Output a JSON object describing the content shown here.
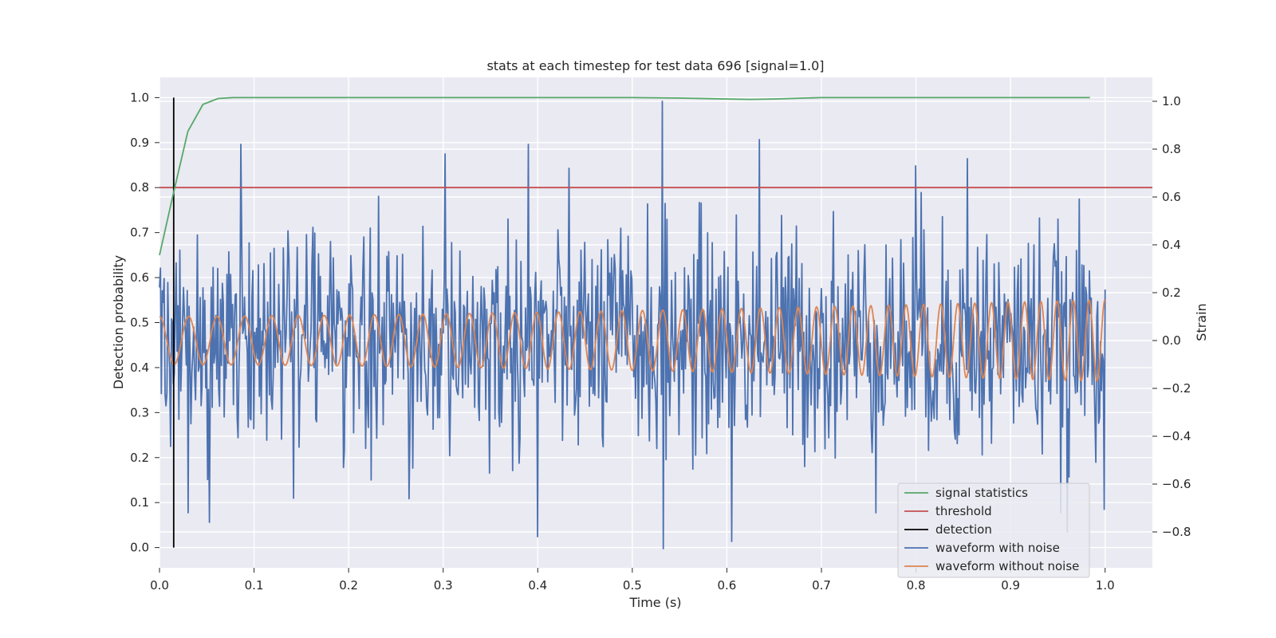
{
  "chart_data": {
    "type": "line",
    "title": "stats at each timestep for test data 696 [signal=1.0]",
    "xlabel": "Time (s)",
    "ylabel_left": "Detection probability",
    "ylabel_right": "Strain",
    "xlim": [
      0.0,
      1.05
    ],
    "ylim_left": [
      -0.045,
      1.045
    ],
    "ylim_right": [
      -0.95,
      1.1
    ],
    "x_ticks": [
      0.0,
      0.1,
      0.2,
      0.3,
      0.4,
      0.5,
      0.6,
      0.7,
      0.8,
      0.9,
      1.0
    ],
    "x_tick_labels": [
      "0.0",
      "0.1",
      "0.2",
      "0.3",
      "0.4",
      "0.5",
      "0.6",
      "0.7",
      "0.8",
      "0.9",
      "1.0"
    ],
    "y_left_ticks": [
      0.0,
      0.1,
      0.2,
      0.3,
      0.4,
      0.5,
      0.6,
      0.7,
      0.8,
      0.9,
      1.0
    ],
    "y_left_tick_labels": [
      "0.0",
      "0.1",
      "0.2",
      "0.3",
      "0.4",
      "0.5",
      "0.6",
      "0.7",
      "0.8",
      "0.9",
      "1.0"
    ],
    "y_right_ticks": [
      -0.8,
      -0.6,
      -0.4,
      -0.2,
      0.0,
      0.2,
      0.4,
      0.6,
      0.8,
      1.0
    ],
    "y_right_tick_labels": [
      "−0.8",
      "−0.6",
      "−0.4",
      "−0.2",
      "0.0",
      "0.2",
      "0.4",
      "0.6",
      "0.8",
      "1.0"
    ],
    "grid": true,
    "legend_position": "lower-right",
    "series": [
      {
        "name": "signal statistics",
        "axis": "left",
        "color": "#55a868",
        "x": [
          0.0,
          0.015,
          0.03,
          0.046,
          0.062,
          0.078,
          0.1,
          0.2,
          0.3,
          0.4,
          0.5,
          0.55,
          0.6,
          0.625,
          0.65,
          0.7,
          0.8,
          0.9,
          0.984
        ],
        "y": [
          0.65,
          0.79,
          0.925,
          0.985,
          0.998,
          1.0,
          1.0,
          1.0,
          1.0,
          1.0,
          1.0,
          0.999,
          0.997,
          0.996,
          0.997,
          1.0,
          1.0,
          1.0,
          1.0
        ]
      },
      {
        "name": "threshold",
        "axis": "left",
        "color": "#c44e52",
        "x": [
          0.0,
          1.05
        ],
        "y": [
          0.8,
          0.8
        ]
      },
      {
        "name": "detection",
        "axis": "left",
        "color": "#000000",
        "x": [
          0.015,
          0.015
        ],
        "y": [
          0.0,
          1.0
        ]
      },
      {
        "name": "waveform with noise",
        "axis": "right",
        "color": "#4c72b0",
        "x_range": [
          0.0,
          1.0
        ],
        "peaks": [
          [
            0.086,
            0.82
          ],
          [
            0.302,
            0.78
          ],
          [
            0.39,
            0.82
          ],
          [
            0.532,
            1.0
          ],
          [
            0.634,
            0.84
          ],
          [
            0.8,
            0.73
          ],
          [
            0.854,
            0.76
          ],
          [
            0.533,
            -0.87
          ],
          [
            0.4,
            -0.82
          ],
          [
            0.605,
            -0.84
          ],
          [
            0.053,
            -0.76
          ],
          [
            0.96,
            -0.8
          ],
          [
            0.03,
            -0.72
          ]
        ]
      },
      {
        "name": "waveform without noise",
        "axis": "right",
        "color": "#dd8452",
        "x_range": [
          0.0,
          1.0
        ],
        "start_amplitude": 0.1,
        "end_amplitude": 0.17,
        "start_frequency": 32,
        "end_frequency": 60
      }
    ]
  }
}
